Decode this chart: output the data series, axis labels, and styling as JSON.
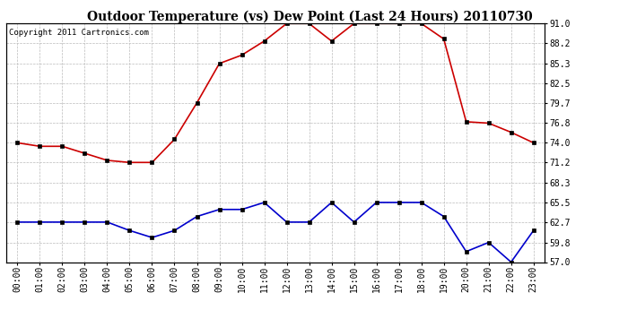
{
  "title": "Outdoor Temperature (vs) Dew Point (Last 24 Hours) 20110730",
  "copyright": "Copyright 2011 Cartronics.com",
  "hours": [
    "00:00",
    "01:00",
    "02:00",
    "03:00",
    "04:00",
    "05:00",
    "06:00",
    "07:00",
    "08:00",
    "09:00",
    "10:00",
    "11:00",
    "12:00",
    "13:00",
    "14:00",
    "15:00",
    "16:00",
    "17:00",
    "18:00",
    "19:00",
    "20:00",
    "21:00",
    "22:00",
    "23:00"
  ],
  "temp": [
    74.0,
    73.5,
    73.5,
    72.5,
    71.5,
    71.2,
    71.2,
    74.5,
    79.7,
    85.3,
    86.5,
    88.5,
    91.0,
    91.0,
    88.5,
    91.0,
    91.0,
    91.0,
    91.0,
    88.8,
    77.0,
    76.8,
    75.5,
    74.0
  ],
  "dew": [
    62.7,
    62.7,
    62.7,
    62.7,
    62.7,
    61.5,
    60.5,
    61.5,
    63.5,
    64.5,
    64.5,
    65.5,
    62.7,
    62.7,
    65.5,
    62.7,
    65.5,
    65.5,
    65.5,
    63.5,
    58.5,
    59.8,
    57.0,
    61.5
  ],
  "temp_color": "#cc0000",
  "dew_color": "#0000cc",
  "background_color": "#ffffff",
  "plot_bg_color": "#ffffff",
  "grid_color": "#bbbbbb",
  "ylim": [
    57.0,
    91.0
  ],
  "yticks": [
    57.0,
    59.8,
    62.7,
    65.5,
    68.3,
    71.2,
    74.0,
    76.8,
    79.7,
    82.5,
    85.3,
    88.2,
    91.0
  ],
  "ytick_labels": [
    "57.0",
    "59.8",
    "62.7",
    "65.5",
    "68.3",
    "71.2",
    "74.0",
    "76.8",
    "79.7",
    "82.5",
    "85.3",
    "88.2",
    "91.0"
  ],
  "title_fontsize": 10,
  "copyright_fontsize": 6.5,
  "tick_fontsize": 7,
  "marker": "s",
  "marker_size": 2.5,
  "line_width": 1.2
}
